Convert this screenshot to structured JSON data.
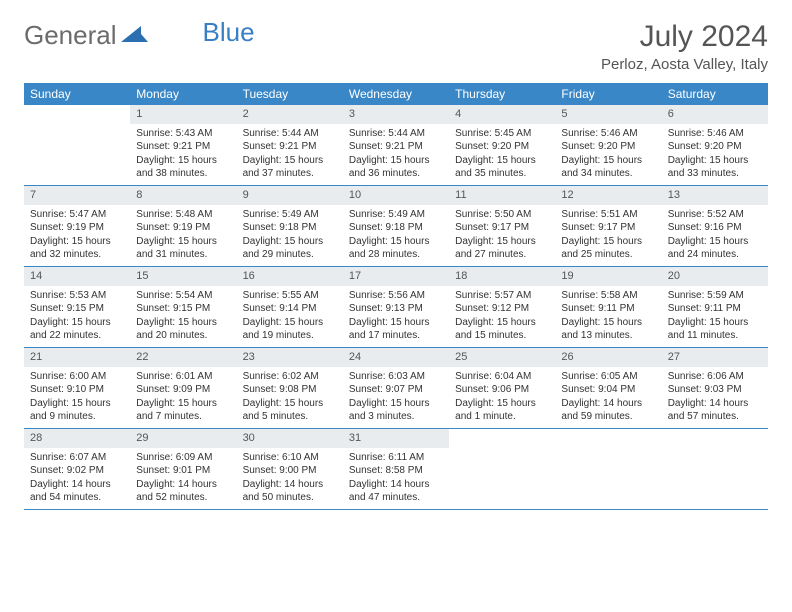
{
  "logo": {
    "word1": "General",
    "word2": "Blue"
  },
  "title": "July 2024",
  "location": "Perloz, Aosta Valley, Italy",
  "colors": {
    "header_bg": "#3a87c7",
    "header_text": "#ffffff",
    "daynum_bg": "#e9ecef",
    "border": "#3a87c7",
    "body_text": "#333333",
    "logo_gray": "#6b6b6b",
    "logo_blue": "#3a7fc4"
  },
  "weekdays": [
    "Sunday",
    "Monday",
    "Tuesday",
    "Wednesday",
    "Thursday",
    "Friday",
    "Saturday"
  ],
  "weeks": [
    [
      null,
      {
        "n": "1",
        "sr": "Sunrise: 5:43 AM",
        "ss": "Sunset: 9:21 PM",
        "dl": "Daylight: 15 hours and 38 minutes."
      },
      {
        "n": "2",
        "sr": "Sunrise: 5:44 AM",
        "ss": "Sunset: 9:21 PM",
        "dl": "Daylight: 15 hours and 37 minutes."
      },
      {
        "n": "3",
        "sr": "Sunrise: 5:44 AM",
        "ss": "Sunset: 9:21 PM",
        "dl": "Daylight: 15 hours and 36 minutes."
      },
      {
        "n": "4",
        "sr": "Sunrise: 5:45 AM",
        "ss": "Sunset: 9:20 PM",
        "dl": "Daylight: 15 hours and 35 minutes."
      },
      {
        "n": "5",
        "sr": "Sunrise: 5:46 AM",
        "ss": "Sunset: 9:20 PM",
        "dl": "Daylight: 15 hours and 34 minutes."
      },
      {
        "n": "6",
        "sr": "Sunrise: 5:46 AM",
        "ss": "Sunset: 9:20 PM",
        "dl": "Daylight: 15 hours and 33 minutes."
      }
    ],
    [
      {
        "n": "7",
        "sr": "Sunrise: 5:47 AM",
        "ss": "Sunset: 9:19 PM",
        "dl": "Daylight: 15 hours and 32 minutes."
      },
      {
        "n": "8",
        "sr": "Sunrise: 5:48 AM",
        "ss": "Sunset: 9:19 PM",
        "dl": "Daylight: 15 hours and 31 minutes."
      },
      {
        "n": "9",
        "sr": "Sunrise: 5:49 AM",
        "ss": "Sunset: 9:18 PM",
        "dl": "Daylight: 15 hours and 29 minutes."
      },
      {
        "n": "10",
        "sr": "Sunrise: 5:49 AM",
        "ss": "Sunset: 9:18 PM",
        "dl": "Daylight: 15 hours and 28 minutes."
      },
      {
        "n": "11",
        "sr": "Sunrise: 5:50 AM",
        "ss": "Sunset: 9:17 PM",
        "dl": "Daylight: 15 hours and 27 minutes."
      },
      {
        "n": "12",
        "sr": "Sunrise: 5:51 AM",
        "ss": "Sunset: 9:17 PM",
        "dl": "Daylight: 15 hours and 25 minutes."
      },
      {
        "n": "13",
        "sr": "Sunrise: 5:52 AM",
        "ss": "Sunset: 9:16 PM",
        "dl": "Daylight: 15 hours and 24 minutes."
      }
    ],
    [
      {
        "n": "14",
        "sr": "Sunrise: 5:53 AM",
        "ss": "Sunset: 9:15 PM",
        "dl": "Daylight: 15 hours and 22 minutes."
      },
      {
        "n": "15",
        "sr": "Sunrise: 5:54 AM",
        "ss": "Sunset: 9:15 PM",
        "dl": "Daylight: 15 hours and 20 minutes."
      },
      {
        "n": "16",
        "sr": "Sunrise: 5:55 AM",
        "ss": "Sunset: 9:14 PM",
        "dl": "Daylight: 15 hours and 19 minutes."
      },
      {
        "n": "17",
        "sr": "Sunrise: 5:56 AM",
        "ss": "Sunset: 9:13 PM",
        "dl": "Daylight: 15 hours and 17 minutes."
      },
      {
        "n": "18",
        "sr": "Sunrise: 5:57 AM",
        "ss": "Sunset: 9:12 PM",
        "dl": "Daylight: 15 hours and 15 minutes."
      },
      {
        "n": "19",
        "sr": "Sunrise: 5:58 AM",
        "ss": "Sunset: 9:11 PM",
        "dl": "Daylight: 15 hours and 13 minutes."
      },
      {
        "n": "20",
        "sr": "Sunrise: 5:59 AM",
        "ss": "Sunset: 9:11 PM",
        "dl": "Daylight: 15 hours and 11 minutes."
      }
    ],
    [
      {
        "n": "21",
        "sr": "Sunrise: 6:00 AM",
        "ss": "Sunset: 9:10 PM",
        "dl": "Daylight: 15 hours and 9 minutes."
      },
      {
        "n": "22",
        "sr": "Sunrise: 6:01 AM",
        "ss": "Sunset: 9:09 PM",
        "dl": "Daylight: 15 hours and 7 minutes."
      },
      {
        "n": "23",
        "sr": "Sunrise: 6:02 AM",
        "ss": "Sunset: 9:08 PM",
        "dl": "Daylight: 15 hours and 5 minutes."
      },
      {
        "n": "24",
        "sr": "Sunrise: 6:03 AM",
        "ss": "Sunset: 9:07 PM",
        "dl": "Daylight: 15 hours and 3 minutes."
      },
      {
        "n": "25",
        "sr": "Sunrise: 6:04 AM",
        "ss": "Sunset: 9:06 PM",
        "dl": "Daylight: 15 hours and 1 minute."
      },
      {
        "n": "26",
        "sr": "Sunrise: 6:05 AM",
        "ss": "Sunset: 9:04 PM",
        "dl": "Daylight: 14 hours and 59 minutes."
      },
      {
        "n": "27",
        "sr": "Sunrise: 6:06 AM",
        "ss": "Sunset: 9:03 PM",
        "dl": "Daylight: 14 hours and 57 minutes."
      }
    ],
    [
      {
        "n": "28",
        "sr": "Sunrise: 6:07 AM",
        "ss": "Sunset: 9:02 PM",
        "dl": "Daylight: 14 hours and 54 minutes."
      },
      {
        "n": "29",
        "sr": "Sunrise: 6:09 AM",
        "ss": "Sunset: 9:01 PM",
        "dl": "Daylight: 14 hours and 52 minutes."
      },
      {
        "n": "30",
        "sr": "Sunrise: 6:10 AM",
        "ss": "Sunset: 9:00 PM",
        "dl": "Daylight: 14 hours and 50 minutes."
      },
      {
        "n": "31",
        "sr": "Sunrise: 6:11 AM",
        "ss": "Sunset: 8:58 PM",
        "dl": "Daylight: 14 hours and 47 minutes."
      },
      null,
      null,
      null
    ]
  ]
}
